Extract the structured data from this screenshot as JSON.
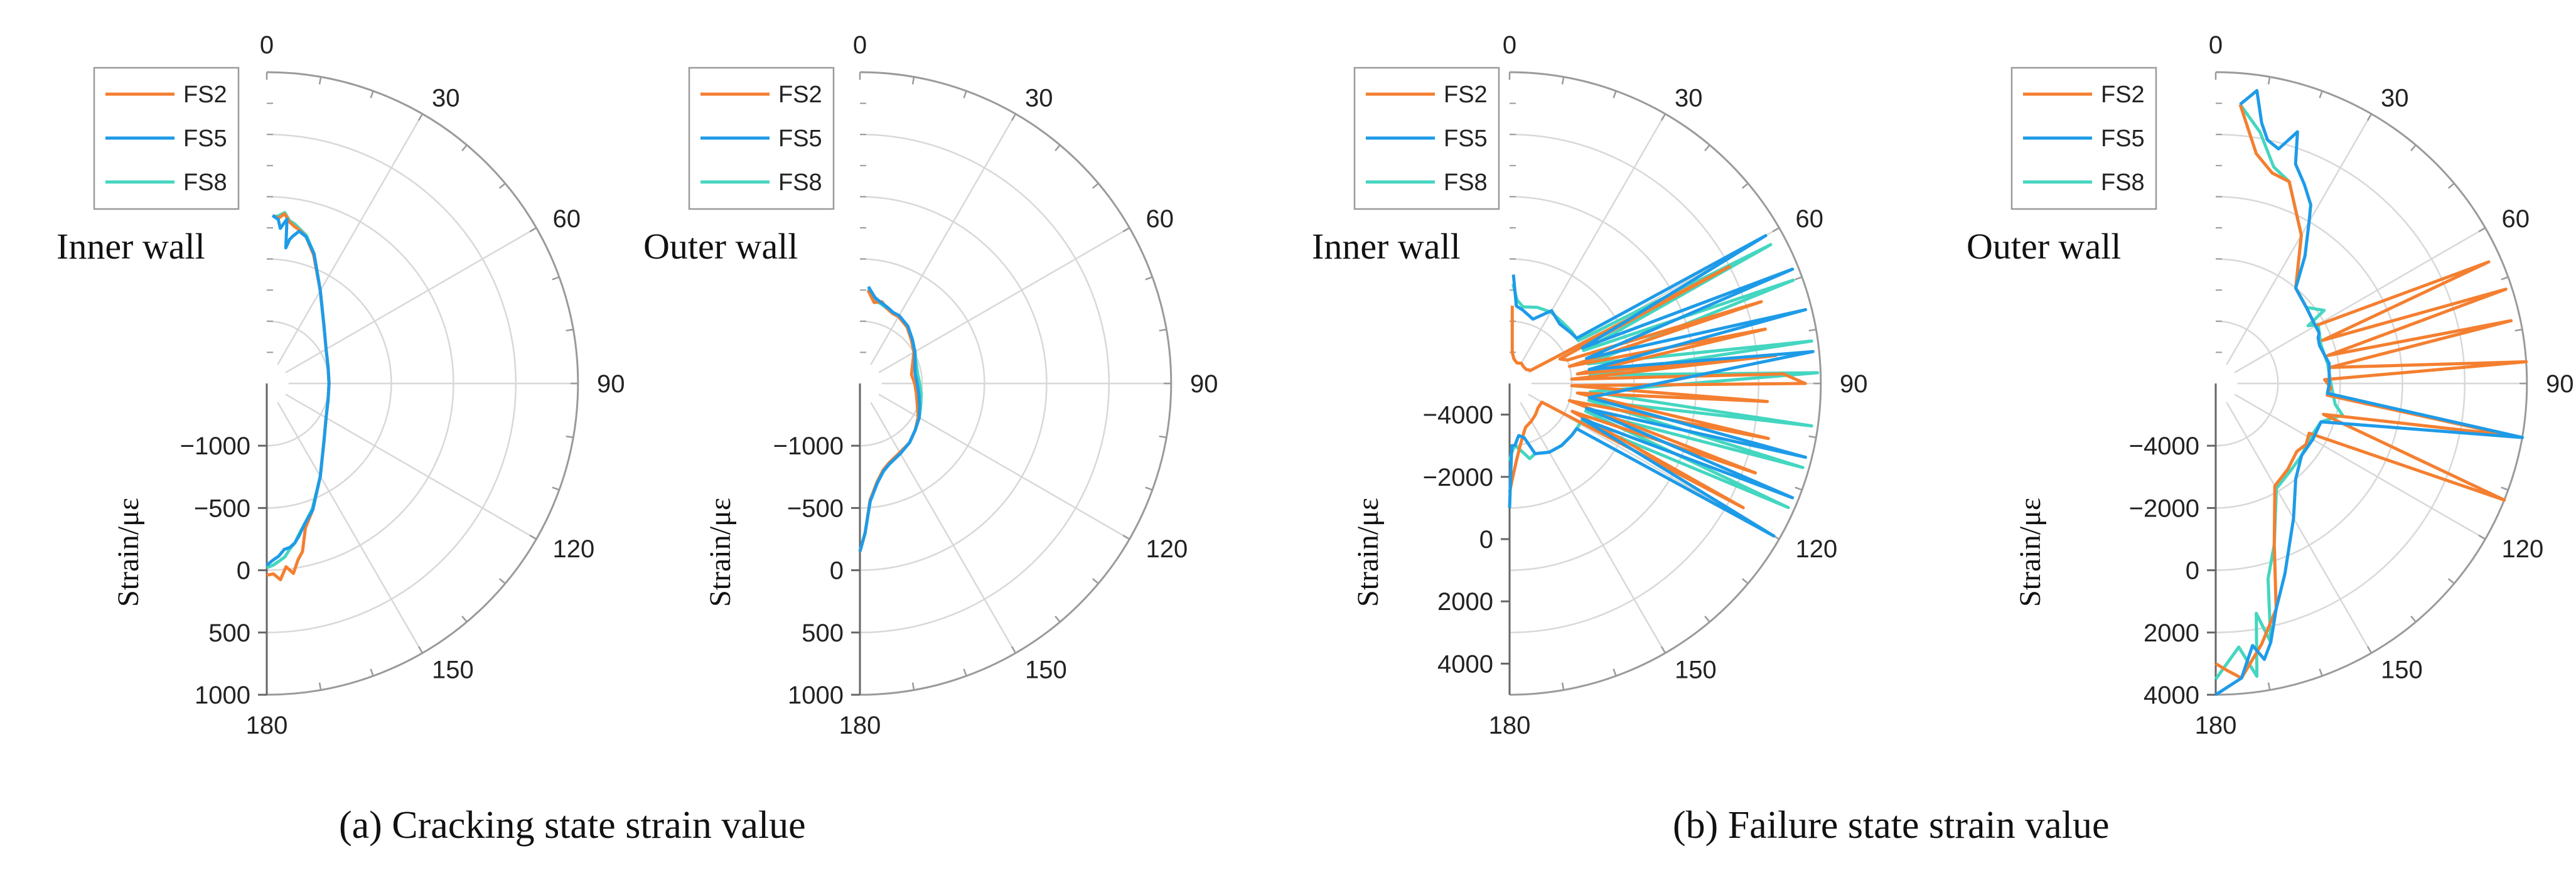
{
  "captions": {
    "a": "(a)  Cracking state strain value",
    "b": "(b)   Failure state strain value"
  },
  "colors": {
    "FS2": "#F47F30",
    "FS5": "#1E9BE8",
    "FS8": "#44D6C0",
    "grid": "#d8d8d8",
    "axis": "#9a9a9a"
  },
  "chart_data": [
    {
      "type": "line",
      "panel": "a",
      "title": "Inner wall",
      "ylabel": "Strain/με",
      "angle_ticks": [
        "0",
        "30",
        "60",
        "90",
        "120",
        "150",
        "180"
      ],
      "r_ticks": [
        "−1000",
        "−500",
        "0",
        "500",
        "1000"
      ],
      "r_tick_values": [
        -1000,
        -500,
        0,
        500,
        1000
      ],
      "rlim": [
        -1500,
        1000
      ],
      "legend": [
        "FS2",
        "FS5",
        "FS8"
      ],
      "series": [
        {
          "name": "FS2",
          "angle": [
            2,
            4,
            6,
            8,
            10,
            12,
            15,
            20,
            30,
            45,
            60,
            75,
            90,
            105,
            120,
            135,
            150,
            160,
            165,
            168,
            170,
            172,
            174,
            176,
            178,
            180
          ],
          "strain": [
            -150,
            -170,
            -130,
            -190,
            -220,
            -240,
            -280,
            -400,
            -640,
            -850,
            -950,
            -990,
            -1000,
            -990,
            -950,
            -850,
            -640,
            -420,
            -300,
            -120,
            -60,
            40,
            -20,
            80,
            30,
            40
          ]
        },
        {
          "name": "FS5",
          "angle": [
            2,
            4,
            5,
            6,
            7,
            8,
            9,
            10,
            12,
            15,
            20,
            30,
            45,
            60,
            75,
            90,
            105,
            120,
            135,
            150,
            160,
            165,
            168,
            170,
            172,
            174,
            176,
            178,
            180
          ],
          "strain": [
            -150,
            -180,
            -250,
            -210,
            -170,
            -400,
            -330,
            -300,
            -250,
            -280,
            -390,
            -640,
            -850,
            -950,
            -990,
            -1000,
            -990,
            -950,
            -850,
            -640,
            -420,
            -330,
            -250,
            -200,
            -170,
            -160,
            -110,
            -80,
            -40
          ]
        },
        {
          "name": "FS8",
          "angle": [
            2,
            4,
            6,
            8,
            10,
            12,
            15,
            20,
            30,
            45,
            60,
            75,
            90,
            105,
            120,
            135,
            150,
            160,
            165,
            168,
            170,
            172,
            174,
            176,
            178,
            180
          ],
          "strain": [
            -160,
            -150,
            -120,
            -180,
            -200,
            -230,
            -270,
            -390,
            -640,
            -850,
            -950,
            -990,
            -1000,
            -990,
            -950,
            -850,
            -640,
            -430,
            -330,
            -260,
            -200,
            -160,
            -100,
            -70,
            -40,
            -20
          ]
        }
      ]
    },
    {
      "type": "line",
      "panel": "a",
      "title": "Outer wall",
      "ylabel": "Strain/με",
      "angle_ticks": [
        "0",
        "30",
        "60",
        "90",
        "120",
        "150",
        "180"
      ],
      "r_ticks": [
        "−1000",
        "−500",
        "0",
        "500",
        "1000"
      ],
      "r_tick_values": [
        -1000,
        -500,
        0,
        500,
        1000
      ],
      "rlim": [
        -1500,
        1000
      ],
      "legend": [
        "FS2",
        "FS5",
        "FS8"
      ],
      "series": [
        {
          "name": "FS2",
          "angle": [
            5,
            10,
            15,
            20,
            25,
            30,
            40,
            50,
            60,
            70,
            80,
            90,
            100,
            110,
            120,
            130,
            140,
            150,
            160,
            165,
            170,
            175,
            178,
            180
          ],
          "strain": [
            -750,
            -840,
            -820,
            -860,
            -880,
            -880,
            -910,
            -960,
            -1000,
            -1050,
            -1080,
            -1060,
            -1040,
            -1010,
            -960,
            -920,
            -880,
            -860,
            -820,
            -780,
            -700,
            -560,
            -300,
            -150
          ]
        },
        {
          "name": "FS5",
          "angle": [
            5,
            10,
            15,
            20,
            25,
            30,
            40,
            50,
            60,
            70,
            80,
            90,
            100,
            110,
            120,
            130,
            140,
            150,
            160,
            165,
            170,
            175,
            178,
            180
          ],
          "strain": [
            -720,
            -800,
            -830,
            -850,
            -870,
            -870,
            -900,
            -950,
            -990,
            -1030,
            -1050,
            -1040,
            -1020,
            -990,
            -950,
            -920,
            -880,
            -850,
            -810,
            -770,
            -690,
            -550,
            -300,
            -150
          ]
        },
        {
          "name": "FS8",
          "angle": [
            5,
            10,
            15,
            20,
            25,
            30,
            40,
            50,
            60,
            70,
            80,
            90,
            100,
            110,
            120,
            130,
            140,
            150,
            160,
            165,
            170,
            175,
            178,
            180
          ],
          "strain": [
            -740,
            -820,
            -840,
            -860,
            -875,
            -875,
            -905,
            -950,
            -990,
            -1020,
            -1030,
            -1020,
            -1000,
            -980,
            -950,
            -920,
            -880,
            -850,
            -815,
            -775,
            -695,
            -555,
            -300,
            -150
          ]
        }
      ]
    },
    {
      "type": "line",
      "panel": "b",
      "title": "Inner wall",
      "ylabel": "Strain/με",
      "angle_ticks": [
        "0",
        "30",
        "60",
        "90",
        "120",
        "150",
        "180"
      ],
      "r_ticks": [
        "−4000",
        "−2000",
        "0",
        "2000",
        "4000"
      ],
      "r_tick_values": [
        -4000,
        -2000,
        0,
        2000,
        4000
      ],
      "rlim": [
        -5000,
        5000
      ],
      "legend": [
        "FS2",
        "FS5",
        "FS8"
      ],
      "series": [
        {
          "name": "FS2",
          "angle": [
            2,
            5,
            10,
            20,
            30,
            40,
            50,
            58,
            62,
            64,
            68,
            72,
            74,
            78,
            82,
            84,
            86,
            88,
            90,
            92,
            94,
            98,
            102,
            106,
            110,
            114,
            118,
            120,
            130,
            140,
            150,
            160,
            165,
            170,
            175,
            178,
            180
          ],
          "strain": [
            -2500,
            -4000,
            -4200,
            -4300,
            -4250,
            -4300,
            -4300,
            -4200,
            3000,
            -3200,
            -3000,
            3500,
            -3000,
            3400,
            -2800,
            3600,
            -3000,
            3800,
            4500,
            -3000,
            3300,
            -2800,
            3500,
            -3000,
            3400,
            -2800,
            3500,
            -3800,
            -3800,
            -3700,
            -3600,
            -3500,
            -3300,
            -3000,
            -2500,
            -2000,
            -1500
          ]
        },
        {
          "name": "FS5",
          "angle": [
            2,
            5,
            10,
            20,
            30,
            40,
            50,
            56,
            60,
            64,
            68,
            72,
            76,
            80,
            84,
            100,
            104,
            108,
            112,
            116,
            120,
            124,
            130,
            140,
            150,
            160,
            165,
            170,
            172,
            175,
            178,
            180
          ],
          "strain": [
            -1500,
            -2500,
            -2600,
            -2800,
            -2300,
            -2500,
            -2450,
            -2400,
            4500,
            -2400,
            4800,
            -2400,
            4800,
            -2400,
            4800,
            -2400,
            4800,
            -2400,
            4800,
            -2400,
            4800,
            -2400,
            -2400,
            -2400,
            -2450,
            -2600,
            -3200,
            -3300,
            -3200,
            -3000,
            -3000,
            -1000
          ]
        },
        {
          "name": "FS8",
          "angle": [
            2,
            5,
            10,
            20,
            30,
            40,
            50,
            58,
            62,
            66,
            70,
            76,
            82,
            84,
            88,
            96,
            98,
            102,
            106,
            110,
            114,
            118,
            122,
            130,
            140,
            150,
            160,
            165,
            170,
            175,
            178,
            180
          ],
          "strain": [
            -1800,
            -2300,
            -2500,
            -2400,
            -2350,
            -2400,
            -2400,
            -2400,
            4500,
            -2400,
            4700,
            -2400,
            4800,
            -2400,
            4900,
            -2400,
            4800,
            -2400,
            4800,
            -2400,
            4800,
            -2400,
            -2400,
            -2400,
            -2400,
            -2450,
            -2600,
            -2500,
            -2800,
            -3000,
            -2800,
            -2500
          ]
        }
      ]
    },
    {
      "type": "line",
      "panel": "b",
      "title": "Outer wall",
      "ylabel": "Strain/με",
      "angle_ticks": [
        "0",
        "30",
        "60",
        "90",
        "120",
        "150",
        "180"
      ],
      "r_ticks": [
        "−4000",
        "−2000",
        "0",
        "2000",
        "4000"
      ],
      "r_tick_values": [
        -4000,
        -2000,
        0,
        2000,
        4000
      ],
      "rlim": [
        -6000,
        4000
      ],
      "legend": [
        "FS2",
        "FS5",
        "FS8"
      ],
      "series": [
        {
          "name": "FS2",
          "angle": [
            5,
            10,
            15,
            20,
            30,
            40,
            50,
            60,
            66,
            68,
            72,
            76,
            78,
            82,
            86,
            88,
            92,
            96,
            100,
            106,
            112,
            118,
            124,
            130,
            140,
            150,
            160,
            165,
            170,
            175,
            178,
            180
          ],
          "strain": [
            3000,
            1500,
            1000,
            900,
            -500,
            -2000,
            -2200,
            -2300,
            3600,
            -2300,
            3800,
            -2300,
            3700,
            -2300,
            4000,
            -2500,
            -2300,
            -2400,
            3600,
            -2400,
            4000,
            -2600,
            -2500,
            -2600,
            -2400,
            -2200,
            -500,
            1500,
            2500,
            3500,
            3200,
            3000
          ]
        },
        {
          "name": "FS5",
          "angle": [
            5,
            8,
            10,
            12,
            15,
            18,
            20,
            24,
            28,
            30,
            35,
            40,
            50,
            60,
            64,
            66,
            70,
            80,
            90,
            95,
            100,
            110,
            120,
            130,
            140,
            150,
            160,
            165,
            168,
            170,
            172,
            175,
            180
          ],
          "strain": [
            3000,
            3500,
            2500,
            2000,
            1800,
            2500,
            1500,
            1000,
            500,
            0,
            -1000,
            -2000,
            -2200,
            -2300,
            -2300,
            -2400,
            -2450,
            -2300,
            -2350,
            -2400,
            4500,
            -2400,
            -2400,
            -2400,
            -2000,
            -1000,
            500,
            1500,
            2500,
            3000,
            2500,
            3500,
            4000
          ]
        },
        {
          "name": "FS8",
          "angle": [
            5,
            10,
            15,
            20,
            30,
            40,
            50,
            56,
            58,
            60,
            64,
            70,
            80,
            90,
            96,
            100,
            104,
            110,
            120,
            130,
            140,
            150,
            160,
            165,
            168,
            170,
            172,
            175,
            180
          ],
          "strain": [
            3000,
            2200,
            1200,
            900,
            -500,
            -2000,
            -2200,
            -1800,
            -2500,
            -2200,
            -2300,
            -2400,
            -2350,
            -2300,
            -2200,
            -2100,
            -1800,
            -2400,
            -2500,
            -2400,
            -2300,
            -2100,
            -500,
            500,
            2500,
            1500,
            3500,
            2500,
            3500
          ]
        }
      ]
    }
  ]
}
